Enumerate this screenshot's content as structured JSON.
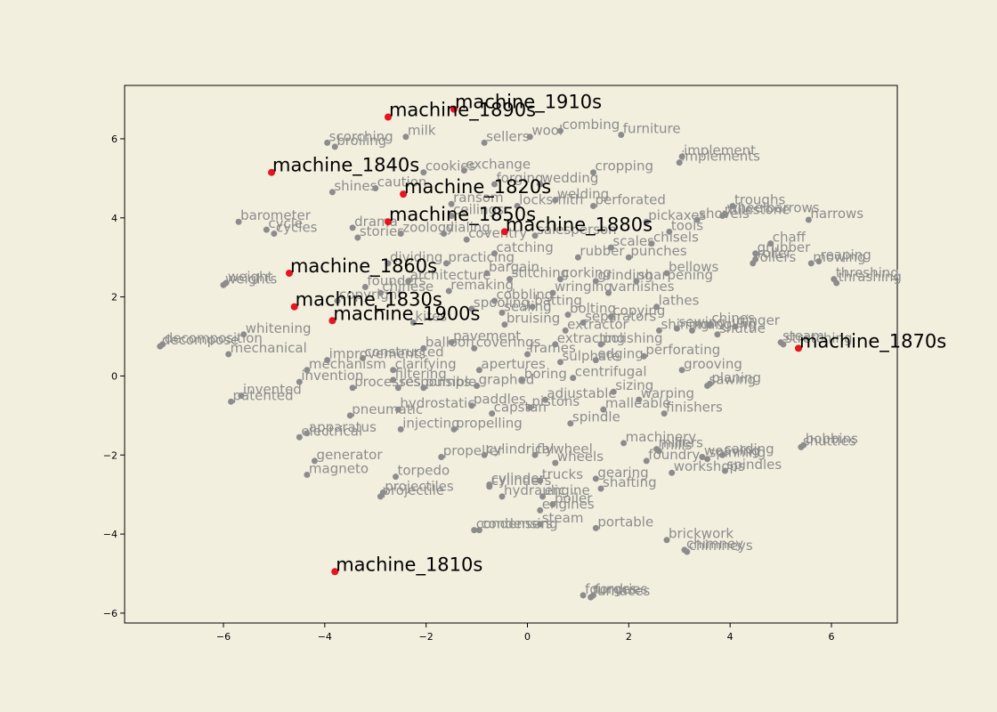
{
  "chart_data": {
    "type": "scatter",
    "title": "",
    "xlabel": "",
    "ylabel": "",
    "xlim": [
      -7.95,
      7.3
    ],
    "ylim": [
      -6.25,
      7.35
    ],
    "xticks": [
      -6,
      -4,
      -2,
      0,
      2,
      4,
      6
    ],
    "yticks": [
      -6,
      -4,
      -2,
      0,
      2,
      4,
      6
    ],
    "xtick_labels": [
      "−6",
      "−4",
      "−2",
      "0",
      "2",
      "4",
      "6"
    ],
    "ytick_labels": [
      "−6",
      "−4",
      "−2",
      "0",
      "2",
      "4",
      "6"
    ],
    "grid": false,
    "colors": {
      "background": "#f3efdf",
      "word_point": "#8c8c8c",
      "machine_point": "#e8141c",
      "machine_text": "#000000"
    },
    "machine_points": [
      {
        "label": "machine_1910s",
        "x": -1.45,
        "y": 6.75
      },
      {
        "label": "machine_1890s",
        "x": -2.75,
        "y": 6.55
      },
      {
        "label": "machine_1840s",
        "x": -5.05,
        "y": 5.15
      },
      {
        "label": "machine_1820s",
        "x": -2.45,
        "y": 4.6
      },
      {
        "label": "machine_1850s",
        "x": -2.75,
        "y": 3.9
      },
      {
        "label": "machine_1880s",
        "x": -0.45,
        "y": 3.65
      },
      {
        "label": "machine_1860s",
        "x": -4.7,
        "y": 2.6
      },
      {
        "label": "machine_1830s",
        "x": -4.6,
        "y": 1.75
      },
      {
        "label": "machine_1900s",
        "x": -3.85,
        "y": 1.4
      },
      {
        "label": "machine_1870s",
        "x": 5.35,
        "y": 0.7
      },
      {
        "label": "machine_1810s",
        "x": -3.8,
        "y": -4.95
      }
    ],
    "words": [
      {
        "label": "scorching",
        "x": -3.95,
        "y": 5.9
      },
      {
        "label": "broiling",
        "x": -3.8,
        "y": 5.8
      },
      {
        "label": "milk",
        "x": -2.4,
        "y": 6.05
      },
      {
        "label": "sellers",
        "x": -0.85,
        "y": 5.9
      },
      {
        "label": "wool",
        "x": 0.05,
        "y": 6.05
      },
      {
        "label": "combing",
        "x": 0.65,
        "y": 6.2
      },
      {
        "label": "furniture",
        "x": 1.85,
        "y": 6.1
      },
      {
        "label": "implement",
        "x": 3.05,
        "y": 5.55
      },
      {
        "label": "implements",
        "x": 3.0,
        "y": 5.4
      },
      {
        "label": "cookies",
        "x": -2.05,
        "y": 5.15
      },
      {
        "label": "exchange",
        "x": -1.25,
        "y": 5.2
      },
      {
        "label": "cropping",
        "x": 1.3,
        "y": 5.15
      },
      {
        "label": "forging",
        "x": -0.65,
        "y": 4.85
      },
      {
        "label": "wedding",
        "x": 0.25,
        "y": 4.85
      },
      {
        "label": "shines",
        "x": -3.85,
        "y": 4.65
      },
      {
        "label": "caution",
        "x": -3.0,
        "y": 4.75
      },
      {
        "label": "ransom",
        "x": -1.5,
        "y": 4.35
      },
      {
        "label": "locksmith",
        "x": -0.2,
        "y": 4.3
      },
      {
        "label": "welding",
        "x": 0.55,
        "y": 4.45
      },
      {
        "label": "perforated",
        "x": 1.3,
        "y": 4.3
      },
      {
        "label": "troughs",
        "x": 4.05,
        "y": 4.3
      },
      {
        "label": "wheelbarrows",
        "x": 3.9,
        "y": 4.1
      },
      {
        "label": "milestone",
        "x": 3.85,
        "y": 4.05
      },
      {
        "label": "harrows",
        "x": 5.55,
        "y": 3.95
      },
      {
        "label": "pickaxes",
        "x": 2.35,
        "y": 3.9
      },
      {
        "label": "shovels",
        "x": 3.35,
        "y": 3.95
      },
      {
        "label": "ceilings",
        "x": -1.5,
        "y": 4.05
      },
      {
        "label": "barometer",
        "x": -5.7,
        "y": 3.9
      },
      {
        "label": "drama",
        "x": -3.45,
        "y": 3.75
      },
      {
        "label": "cycle",
        "x": -5.15,
        "y": 3.7
      },
      {
        "label": "cycles",
        "x": -5.0,
        "y": 3.6
      },
      {
        "label": "zoology",
        "x": -2.5,
        "y": 3.6
      },
      {
        "label": "dialing",
        "x": -1.65,
        "y": 3.6
      },
      {
        "label": "coventry",
        "x": -1.2,
        "y": 3.45
      },
      {
        "label": "stories",
        "x": -3.35,
        "y": 3.5
      },
      {
        "label": "tools",
        "x": 2.8,
        "y": 3.65
      },
      {
        "label": "chisels",
        "x": 2.45,
        "y": 3.35
      },
      {
        "label": "salesperson",
        "x": 0.15,
        "y": 3.55
      },
      {
        "label": "scales",
        "x": 1.65,
        "y": 3.25
      },
      {
        "label": "catching",
        "x": -0.65,
        "y": 3.1
      },
      {
        "label": "rubber",
        "x": 1.0,
        "y": 3.0
      },
      {
        "label": "punches",
        "x": 2.0,
        "y": 3.0
      },
      {
        "label": "chaff",
        "x": 4.8,
        "y": 3.35
      },
      {
        "label": "grubber",
        "x": 4.5,
        "y": 3.1
      },
      {
        "label": "roller",
        "x": 4.5,
        "y": 2.95
      },
      {
        "label": "rollers",
        "x": 4.45,
        "y": 2.85
      },
      {
        "label": "mowing",
        "x": 5.6,
        "y": 2.85
      },
      {
        "label": "reaping",
        "x": 5.75,
        "y": 2.9
      },
      {
        "label": "dividing",
        "x": -2.75,
        "y": 2.85
      },
      {
        "label": "practicing",
        "x": -1.6,
        "y": 2.85
      },
      {
        "label": "bargain",
        "x": -0.8,
        "y": 2.6
      },
      {
        "label": "bellows",
        "x": 2.75,
        "y": 2.6
      },
      {
        "label": "threshing",
        "x": 6.05,
        "y": 2.45
      },
      {
        "label": "thrashing",
        "x": 6.1,
        "y": 2.35
      },
      {
        "label": "weight",
        "x": -5.95,
        "y": 2.35
      },
      {
        "label": "weights",
        "x": -6.0,
        "y": 2.3
      },
      {
        "label": "architecture",
        "x": -2.35,
        "y": 2.4
      },
      {
        "label": "stitching",
        "x": -0.35,
        "y": 2.45
      },
      {
        "label": "corking",
        "x": 0.65,
        "y": 2.45
      },
      {
        "label": "grinding",
        "x": 1.35,
        "y": 2.4
      },
      {
        "label": "sharpening",
        "x": 2.15,
        "y": 2.4
      },
      {
        "label": "founders",
        "x": -3.2,
        "y": 2.25
      },
      {
        "label": "chinese",
        "x": -2.9,
        "y": 2.1
      },
      {
        "label": "remaking",
        "x": -1.55,
        "y": 2.15
      },
      {
        "label": "wringing",
        "x": 0.5,
        "y": 2.1
      },
      {
        "label": "varnishes",
        "x": 1.6,
        "y": 2.1
      },
      {
        "label": "copyright",
        "x": -3.75,
        "y": 1.9
      },
      {
        "label": "cobbling",
        "x": -0.65,
        "y": 1.9
      },
      {
        "label": "batting",
        "x": 0.1,
        "y": 1.75
      },
      {
        "label": "bolting",
        "x": 0.8,
        "y": 1.55
      },
      {
        "label": "lathes",
        "x": 2.55,
        "y": 1.75
      },
      {
        "label": "spooling",
        "x": -1.1,
        "y": 1.7
      },
      {
        "label": "sealing",
        "x": -0.5,
        "y": 1.6
      },
      {
        "label": "kites",
        "x": -2.25,
        "y": 1.35
      },
      {
        "label": "bruising",
        "x": -0.45,
        "y": 1.3
      },
      {
        "label": "separators",
        "x": 1.1,
        "y": 1.35
      },
      {
        "label": "copying",
        "x": 1.65,
        "y": 1.5
      },
      {
        "label": "extractor",
        "x": 0.75,
        "y": 1.15
      },
      {
        "label": "whitening",
        "x": -5.6,
        "y": 1.05
      },
      {
        "label": "shining",
        "x": 2.6,
        "y": 1.15
      },
      {
        "label": "sewing",
        "x": 2.95,
        "y": 1.2
      },
      {
        "label": "mangling",
        "x": 3.25,
        "y": 1.15
      },
      {
        "label": "chines",
        "x": 3.6,
        "y": 1.3
      },
      {
        "label": "ginger",
        "x": 4.1,
        "y": 1.25
      },
      {
        "label": "shuttle",
        "x": 3.75,
        "y": 1.05
      },
      {
        "label": "steam",
        "x": 5.0,
        "y": 0.85
      },
      {
        "label": "stretching",
        "x": 5.05,
        "y": 0.8
      },
      {
        "label": "decomposition",
        "x": -7.2,
        "y": 0.8
      },
      {
        "label": "decompose",
        "x": -7.25,
        "y": 0.75
      },
      {
        "label": "balloon",
        "x": -2.05,
        "y": 0.7
      },
      {
        "label": "pavement",
        "x": -1.5,
        "y": 0.85
      },
      {
        "label": "coverings",
        "x": -1.05,
        "y": 0.7
      },
      {
        "label": "extracting",
        "x": 0.55,
        "y": 0.8
      },
      {
        "label": "polishing",
        "x": 1.45,
        "y": 0.8
      },
      {
        "label": "mechanical",
        "x": -5.9,
        "y": 0.55
      },
      {
        "label": "improvements",
        "x": -3.95,
        "y": 0.4
      },
      {
        "label": "constructed",
        "x": -3.25,
        "y": 0.45
      },
      {
        "label": "frames",
        "x": 0.0,
        "y": 0.55
      },
      {
        "label": "sulphate",
        "x": 0.65,
        "y": 0.35
      },
      {
        "label": "edging",
        "x": 1.35,
        "y": 0.4
      },
      {
        "label": "perforating",
        "x": 2.3,
        "y": 0.5
      },
      {
        "label": "mechanism",
        "x": -4.35,
        "y": 0.15
      },
      {
        "label": "clarifying",
        "x": -2.65,
        "y": 0.15
      },
      {
        "label": "apertures",
        "x": -0.95,
        "y": 0.15
      },
      {
        "label": "grooving",
        "x": 3.05,
        "y": 0.15
      },
      {
        "label": "filtering",
        "x": -2.65,
        "y": -0.1
      },
      {
        "label": "boring",
        "x": -0.1,
        "y": -0.1
      },
      {
        "label": "centrifugal",
        "x": 0.9,
        "y": -0.05
      },
      {
        "label": "invention",
        "x": -4.5,
        "y": -0.15
      },
      {
        "label": "processes",
        "x": -3.45,
        "y": -0.3
      },
      {
        "label": "responsible",
        "x": -2.55,
        "y": -0.3
      },
      {
        "label": "pumps",
        "x": -2.05,
        "y": -0.3
      },
      {
        "label": "graphed",
        "x": -1.0,
        "y": -0.25
      },
      {
        "label": "planing",
        "x": 3.6,
        "y": -0.2
      },
      {
        "label": "sawing",
        "x": 3.55,
        "y": -0.25
      },
      {
        "label": "invented",
        "x": -5.65,
        "y": -0.5
      },
      {
        "label": "patented",
        "x": -5.85,
        "y": -0.65
      },
      {
        "label": "sizing",
        "x": 1.7,
        "y": -0.4
      },
      {
        "label": "adjustable",
        "x": 0.35,
        "y": -0.6
      },
      {
        "label": "warping",
        "x": 2.2,
        "y": -0.6
      },
      {
        "label": "hydrostatic",
        "x": -2.55,
        "y": -0.85
      },
      {
        "label": "paddles",
        "x": -1.1,
        "y": -0.75
      },
      {
        "label": "pistons",
        "x": 0.05,
        "y": -0.8
      },
      {
        "label": "capstan",
        "x": -0.7,
        "y": -0.95
      },
      {
        "label": "malleable",
        "x": 1.5,
        "y": -0.85
      },
      {
        "label": "finishers",
        "x": 2.7,
        "y": -0.95
      },
      {
        "label": "pneumatic",
        "x": -3.5,
        "y": -1.0
      },
      {
        "label": "spindle",
        "x": 0.85,
        "y": -1.2
      },
      {
        "label": "injecting",
        "x": -2.5,
        "y": -1.35
      },
      {
        "label": "propelling",
        "x": -1.45,
        "y": -1.35
      },
      {
        "label": "apparatus",
        "x": -4.35,
        "y": -1.45
      },
      {
        "label": "electrical",
        "x": -4.5,
        "y": -1.55
      },
      {
        "label": "machinery",
        "x": 1.9,
        "y": -1.7
      },
      {
        "label": "mills",
        "x": 2.6,
        "y": -1.9
      },
      {
        "label": "millers",
        "x": 2.55,
        "y": -1.85
      },
      {
        "label": "bobbins",
        "x": 5.45,
        "y": -1.75
      },
      {
        "label": "shuttles",
        "x": 5.4,
        "y": -1.8
      },
      {
        "label": "carding",
        "x": 3.85,
        "y": -2.0
      },
      {
        "label": "weaving",
        "x": 3.45,
        "y": -2.05
      },
      {
        "label": "spinning",
        "x": 3.55,
        "y": -2.1
      },
      {
        "label": "cylindrical",
        "x": -0.85,
        "y": -2.0
      },
      {
        "label": "flywheel",
        "x": 0.15,
        "y": -2.0
      },
      {
        "label": "wheels",
        "x": 0.55,
        "y": -2.2
      },
      {
        "label": "foundry",
        "x": 2.35,
        "y": -2.15
      },
      {
        "label": "generator",
        "x": -4.2,
        "y": -2.15
      },
      {
        "label": "propeller",
        "x": -1.7,
        "y": -2.05
      },
      {
        "label": "workshops",
        "x": 2.85,
        "y": -2.45
      },
      {
        "label": "spindles",
        "x": 3.9,
        "y": -2.4
      },
      {
        "label": "magneto",
        "x": -4.35,
        "y": -2.5
      },
      {
        "label": "torpedo",
        "x": -2.6,
        "y": -2.55
      },
      {
        "label": "trucks",
        "x": 0.25,
        "y": -2.65
      },
      {
        "label": "gearing",
        "x": 1.35,
        "y": -2.6
      },
      {
        "label": "cylinders",
        "x": -0.75,
        "y": -2.8
      },
      {
        "label": "cylinder",
        "x": -0.75,
        "y": -2.75
      },
      {
        "label": "shafting",
        "x": 1.45,
        "y": -2.85
      },
      {
        "label": "projectiles",
        "x": -2.85,
        "y": -2.95
      },
      {
        "label": "projectile",
        "x": -2.9,
        "y": -3.05
      },
      {
        "label": "hydraulic",
        "x": -0.5,
        "y": -3.05
      },
      {
        "label": "engine",
        "x": 0.3,
        "y": -3.05
      },
      {
        "label": "boiler",
        "x": 0.5,
        "y": -3.25
      },
      {
        "label": "engines",
        "x": 0.25,
        "y": -3.4
      },
      {
        "label": "steam",
        "x": 0.25,
        "y": -3.75
      },
      {
        "label": "condensers",
        "x": -1.05,
        "y": -3.9
      },
      {
        "label": "condensing",
        "x": -0.95,
        "y": -3.9
      },
      {
        "label": "portable",
        "x": 1.35,
        "y": -3.85
      },
      {
        "label": "brickwork",
        "x": 2.75,
        "y": -4.15
      },
      {
        "label": "chimney",
        "x": 3.1,
        "y": -4.4
      },
      {
        "label": "chimneys",
        "x": 3.15,
        "y": -4.45
      },
      {
        "label": "foundries",
        "x": 1.1,
        "y": -5.55
      },
      {
        "label": "forges",
        "x": 1.3,
        "y": -5.55
      },
      {
        "label": "furnaces",
        "x": 1.25,
        "y": -5.6
      }
    ]
  }
}
